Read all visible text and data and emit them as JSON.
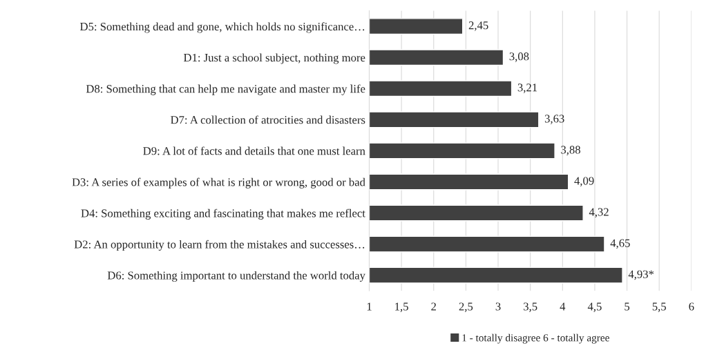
{
  "chart_data": {
    "type": "bar",
    "orientation": "horizontal",
    "categories": [
      "D5: Something dead and gone, which holds no significance…",
      "D1: Just a school subject, nothing more",
      "D8: Something that can help me navigate and master my life",
      "D7: A collection of atrocities and disasters",
      "D9: A lot of facts and details that one must learn",
      "D3: A series of examples of what is right or wrong, good or bad",
      "D4: Something exciting and fascinating that makes me reflect",
      "D2: An opportunity to learn from the mistakes and successes…",
      "D6: Something important to understand the world today"
    ],
    "series": [
      {
        "name": "1 - totally disagree 6 - totally agree",
        "color": "#404040",
        "values": [
          2.45,
          3.08,
          3.21,
          3.63,
          3.88,
          4.09,
          4.32,
          4.65,
          4.93
        ],
        "value_labels": [
          "2,45",
          "3,08",
          "3,21",
          "3,63",
          "3,88",
          "4,09",
          "4,32",
          "4,65",
          "4,93*"
        ]
      }
    ],
    "xlim": [
      1,
      6
    ],
    "xticks": [
      1,
      {
        "value": 1.5,
        "label": "1,5"
      },
      2,
      {
        "value": 2.5,
        "label": "2,5"
      },
      3,
      {
        "value": 3.5,
        "label": "3,5"
      },
      4,
      {
        "value": 4.5,
        "label": "4,5"
      },
      5,
      {
        "value": 5.5,
        "label": "5,5"
      },
      6
    ],
    "grid": "x",
    "legend": "bottom"
  }
}
